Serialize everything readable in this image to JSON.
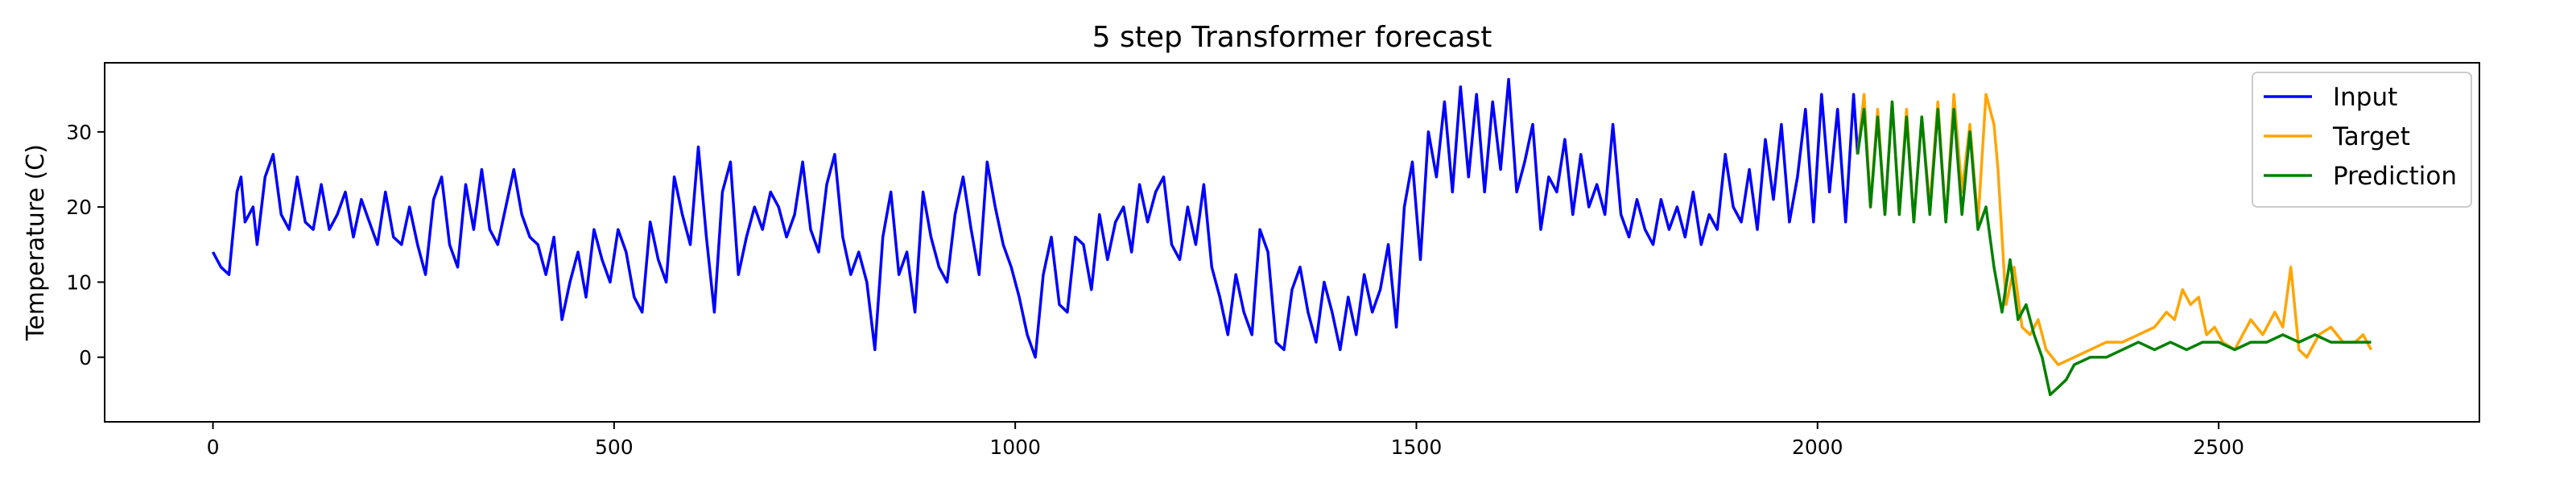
{
  "chart_data": {
    "type": "line",
    "title": "5 step Transformer forecast",
    "xlabel": "",
    "ylabel": "Temperature (C)",
    "xlim": [
      -135,
      2825
    ],
    "ylim": [
      -8.6,
      39.2
    ],
    "xticks": [
      0,
      500,
      1000,
      1500,
      2000,
      2500
    ],
    "yticks": [
      0,
      10,
      20,
      30
    ],
    "grid": false,
    "legend_position": "top-right",
    "series": [
      {
        "name": "Input",
        "color": "#0000ff",
        "points": [
          [
            0,
            14
          ],
          [
            10,
            12
          ],
          [
            20,
            11
          ],
          [
            30,
            22
          ],
          [
            35,
            24
          ],
          [
            40,
            18
          ],
          [
            50,
            20
          ],
          [
            55,
            15
          ],
          [
            65,
            24
          ],
          [
            75,
            27
          ],
          [
            85,
            19
          ],
          [
            95,
            17
          ],
          [
            105,
            24
          ],
          [
            115,
            18
          ],
          [
            125,
            17
          ],
          [
            135,
            23
          ],
          [
            145,
            17
          ],
          [
            155,
            19
          ],
          [
            165,
            22
          ],
          [
            175,
            16
          ],
          [
            185,
            21
          ],
          [
            195,
            18
          ],
          [
            205,
            15
          ],
          [
            215,
            22
          ],
          [
            225,
            16
          ],
          [
            235,
            15
          ],
          [
            245,
            20
          ],
          [
            255,
            15
          ],
          [
            265,
            11
          ],
          [
            275,
            21
          ],
          [
            285,
            24
          ],
          [
            295,
            15
          ],
          [
            305,
            12
          ],
          [
            315,
            23
          ],
          [
            325,
            17
          ],
          [
            335,
            25
          ],
          [
            345,
            17
          ],
          [
            355,
            15
          ],
          [
            365,
            20
          ],
          [
            375,
            25
          ],
          [
            385,
            19
          ],
          [
            395,
            16
          ],
          [
            405,
            15
          ],
          [
            415,
            11
          ],
          [
            425,
            16
          ],
          [
            435,
            5
          ],
          [
            445,
            10
          ],
          [
            455,
            14
          ],
          [
            465,
            8
          ],
          [
            475,
            17
          ],
          [
            485,
            13
          ],
          [
            495,
            10
          ],
          [
            505,
            17
          ],
          [
            515,
            14
          ],
          [
            525,
            8
          ],
          [
            535,
            6
          ],
          [
            545,
            18
          ],
          [
            555,
            13
          ],
          [
            565,
            10
          ],
          [
            575,
            24
          ],
          [
            585,
            19
          ],
          [
            595,
            15
          ],
          [
            605,
            28
          ],
          [
            615,
            16
          ],
          [
            625,
            6
          ],
          [
            635,
            22
          ],
          [
            645,
            26
          ],
          [
            655,
            11
          ],
          [
            665,
            16
          ],
          [
            675,
            20
          ],
          [
            685,
            17
          ],
          [
            695,
            22
          ],
          [
            705,
            20
          ],
          [
            715,
            16
          ],
          [
            725,
            19
          ],
          [
            735,
            26
          ],
          [
            745,
            17
          ],
          [
            755,
            14
          ],
          [
            765,
            23
          ],
          [
            775,
            27
          ],
          [
            785,
            16
          ],
          [
            795,
            11
          ],
          [
            805,
            14
          ],
          [
            815,
            10
          ],
          [
            825,
            1
          ],
          [
            835,
            16
          ],
          [
            845,
            22
          ],
          [
            855,
            11
          ],
          [
            865,
            14
          ],
          [
            875,
            6
          ],
          [
            885,
            22
          ],
          [
            895,
            16
          ],
          [
            905,
            12
          ],
          [
            915,
            10
          ],
          [
            925,
            19
          ],
          [
            935,
            24
          ],
          [
            945,
            17
          ],
          [
            955,
            11
          ],
          [
            965,
            26
          ],
          [
            975,
            20
          ],
          [
            985,
            15
          ],
          [
            995,
            12
          ],
          [
            1005,
            8
          ],
          [
            1015,
            3
          ],
          [
            1025,
            0
          ],
          [
            1035,
            11
          ],
          [
            1045,
            16
          ],
          [
            1055,
            7
          ],
          [
            1065,
            6
          ],
          [
            1075,
            16
          ],
          [
            1085,
            15
          ],
          [
            1095,
            9
          ],
          [
            1105,
            19
          ],
          [
            1115,
            13
          ],
          [
            1125,
            18
          ],
          [
            1135,
            20
          ],
          [
            1145,
            14
          ],
          [
            1155,
            23
          ],
          [
            1165,
            18
          ],
          [
            1175,
            22
          ],
          [
            1185,
            24
          ],
          [
            1195,
            15
          ],
          [
            1205,
            13
          ],
          [
            1215,
            20
          ],
          [
            1225,
            15
          ],
          [
            1235,
            23
          ],
          [
            1245,
            12
          ],
          [
            1255,
            8
          ],
          [
            1265,
            3
          ],
          [
            1275,
            11
          ],
          [
            1285,
            6
          ],
          [
            1295,
            3
          ],
          [
            1305,
            17
          ],
          [
            1315,
            14
          ],
          [
            1325,
            2
          ],
          [
            1335,
            1
          ],
          [
            1345,
            9
          ],
          [
            1355,
            12
          ],
          [
            1365,
            6
          ],
          [
            1375,
            2
          ],
          [
            1385,
            10
          ],
          [
            1395,
            6
          ],
          [
            1405,
            1
          ],
          [
            1415,
            8
          ],
          [
            1425,
            3
          ],
          [
            1435,
            11
          ],
          [
            1445,
            6
          ],
          [
            1455,
            9
          ],
          [
            1465,
            15
          ],
          [
            1475,
            4
          ],
          [
            1485,
            20
          ],
          [
            1495,
            26
          ],
          [
            1505,
            13
          ],
          [
            1515,
            30
          ],
          [
            1525,
            24
          ],
          [
            1535,
            34
          ],
          [
            1545,
            22
          ],
          [
            1555,
            36
          ],
          [
            1565,
            24
          ],
          [
            1575,
            35
          ],
          [
            1585,
            22
          ],
          [
            1595,
            34
          ],
          [
            1605,
            25
          ],
          [
            1615,
            37
          ],
          [
            1625,
            22
          ],
          [
            1635,
            26
          ],
          [
            1645,
            31
          ],
          [
            1655,
            17
          ],
          [
            1665,
            24
          ],
          [
            1675,
            22
          ],
          [
            1685,
            29
          ],
          [
            1695,
            19
          ],
          [
            1705,
            27
          ],
          [
            1715,
            20
          ],
          [
            1725,
            23
          ],
          [
            1735,
            19
          ],
          [
            1745,
            31
          ],
          [
            1755,
            19
          ],
          [
            1765,
            16
          ],
          [
            1775,
            21
          ],
          [
            1785,
            17
          ],
          [
            1795,
            15
          ],
          [
            1805,
            21
          ],
          [
            1815,
            17
          ],
          [
            1825,
            20
          ],
          [
            1835,
            16
          ],
          [
            1845,
            22
          ],
          [
            1855,
            15
          ],
          [
            1865,
            19
          ],
          [
            1875,
            17
          ],
          [
            1885,
            27
          ],
          [
            1895,
            20
          ],
          [
            1905,
            18
          ],
          [
            1915,
            25
          ],
          [
            1925,
            17
          ],
          [
            1935,
            29
          ],
          [
            1945,
            21
          ],
          [
            1955,
            31
          ],
          [
            1965,
            18
          ],
          [
            1975,
            24
          ],
          [
            1985,
            33
          ],
          [
            1995,
            18
          ],
          [
            2005,
            35
          ],
          [
            2015,
            22
          ],
          [
            2025,
            33
          ],
          [
            2035,
            18
          ],
          [
            2045,
            35
          ],
          [
            2050,
            27
          ]
        ]
      },
      {
        "name": "Target",
        "color": "#ffa500",
        "points": [
          [
            2050,
            27
          ],
          [
            2058,
            35
          ],
          [
            2066,
            20
          ],
          [
            2075,
            33
          ],
          [
            2084,
            19
          ],
          [
            2093,
            34
          ],
          [
            2102,
            19
          ],
          [
            2111,
            33
          ],
          [
            2120,
            18
          ],
          [
            2130,
            32
          ],
          [
            2140,
            20
          ],
          [
            2150,
            34
          ],
          [
            2160,
            18
          ],
          [
            2170,
            35
          ],
          [
            2180,
            22
          ],
          [
            2190,
            31
          ],
          [
            2200,
            18
          ],
          [
            2210,
            35
          ],
          [
            2220,
            31
          ],
          [
            2225,
            25
          ],
          [
            2235,
            7
          ],
          [
            2245,
            12
          ],
          [
            2255,
            4
          ],
          [
            2265,
            3
          ],
          [
            2275,
            5
          ],
          [
            2285,
            1
          ],
          [
            2300,
            -1
          ],
          [
            2320,
            0
          ],
          [
            2340,
            1
          ],
          [
            2360,
            2
          ],
          [
            2380,
            2
          ],
          [
            2400,
            3
          ],
          [
            2420,
            4
          ],
          [
            2435,
            6
          ],
          [
            2445,
            5
          ],
          [
            2455,
            9
          ],
          [
            2465,
            7
          ],
          [
            2475,
            8
          ],
          [
            2485,
            3
          ],
          [
            2495,
            4
          ],
          [
            2505,
            2
          ],
          [
            2520,
            1
          ],
          [
            2540,
            5
          ],
          [
            2555,
            3
          ],
          [
            2570,
            6
          ],
          [
            2580,
            4
          ],
          [
            2590,
            12
          ],
          [
            2600,
            1
          ],
          [
            2610,
            0
          ],
          [
            2625,
            3
          ],
          [
            2640,
            4
          ],
          [
            2655,
            2
          ],
          [
            2670,
            2
          ],
          [
            2680,
            3
          ],
          [
            2690,
            1
          ]
        ]
      },
      {
        "name": "Prediction",
        "color": "#008000",
        "points": [
          [
            2050,
            27
          ],
          [
            2058,
            33
          ],
          [
            2066,
            20
          ],
          [
            2075,
            32
          ],
          [
            2084,
            19
          ],
          [
            2093,
            34
          ],
          [
            2102,
            19
          ],
          [
            2111,
            32
          ],
          [
            2120,
            18
          ],
          [
            2130,
            32
          ],
          [
            2140,
            19
          ],
          [
            2150,
            33
          ],
          [
            2160,
            18
          ],
          [
            2170,
            33
          ],
          [
            2180,
            19
          ],
          [
            2190,
            30
          ],
          [
            2200,
            17
          ],
          [
            2210,
            20
          ],
          [
            2220,
            12
          ],
          [
            2230,
            6
          ],
          [
            2240,
            13
          ],
          [
            2250,
            5
          ],
          [
            2260,
            7
          ],
          [
            2270,
            3
          ],
          [
            2280,
            0
          ],
          [
            2290,
            -5
          ],
          [
            2300,
            -4
          ],
          [
            2310,
            -3
          ],
          [
            2320,
            -1
          ],
          [
            2340,
            0
          ],
          [
            2360,
            0
          ],
          [
            2380,
            1
          ],
          [
            2400,
            2
          ],
          [
            2420,
            1
          ],
          [
            2440,
            2
          ],
          [
            2460,
            1
          ],
          [
            2480,
            2
          ],
          [
            2500,
            2
          ],
          [
            2520,
            1
          ],
          [
            2540,
            2
          ],
          [
            2560,
            2
          ],
          [
            2580,
            3
          ],
          [
            2600,
            2
          ],
          [
            2620,
            3
          ],
          [
            2640,
            2
          ],
          [
            2660,
            2
          ],
          [
            2680,
            2
          ],
          [
            2690,
            2
          ]
        ]
      }
    ]
  }
}
